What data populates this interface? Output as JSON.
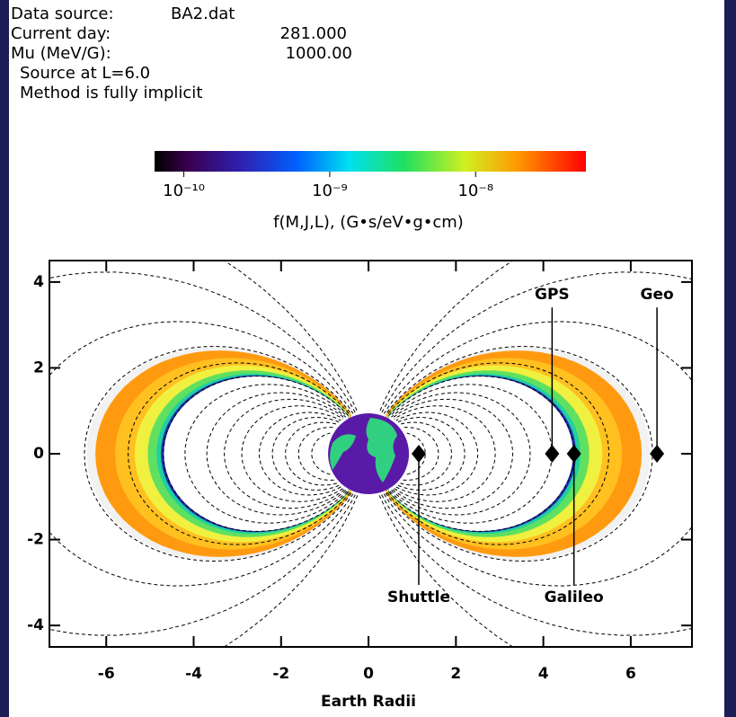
{
  "header": {
    "fields": [
      [
        "Data source:",
        "BA2.dat"
      ],
      [
        "Current day:",
        "281.000"
      ],
      [
        "Mu  (MeV/G):",
        "1000.00"
      ]
    ],
    "notes": [
      "Source at L=6.0",
      "Method is fully implicit"
    ]
  },
  "chart_data": {
    "type": "scatter",
    "xlabel": "Earth Radii",
    "xlim": [
      -7.3,
      7.4
    ],
    "ylim": [
      -4.5,
      4.5
    ],
    "xticks": [
      -6,
      -4,
      -2,
      0,
      2,
      4,
      6
    ],
    "yticks": [
      -4,
      -2,
      0,
      2,
      4
    ],
    "points": {
      "x": [
        1.15,
        4.2,
        4.7,
        6.6
      ],
      "y": [
        0,
        0,
        0,
        0
      ],
      "labels": [
        "Shuttle",
        "GPS",
        "Galileo",
        "Geo"
      ],
      "color": "#000000"
    },
    "colorbar": {
      "label": "f(M,J,L), (G•s/eV•g•cm)",
      "clim": [
        6.3e-11,
        5.7e-08
      ],
      "log": true,
      "ticks": [
        {
          "value": 1e-10,
          "label": "10⁻¹⁰"
        },
        {
          "value": 1e-09,
          "label": "10⁻⁹"
        },
        {
          "value": 1e-08,
          "label": "10⁻⁸"
        }
      ]
    }
  }
}
